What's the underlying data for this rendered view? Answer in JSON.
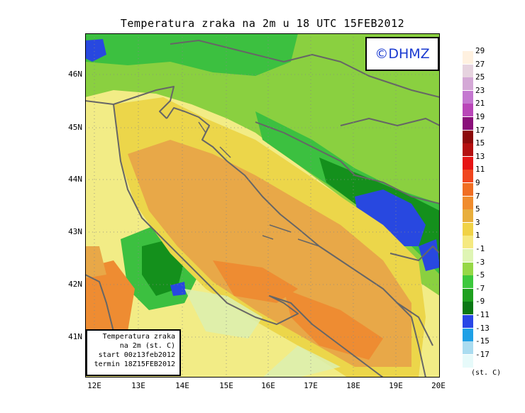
{
  "title": "Temperatura zraka na 2m u 18 UTC 15FEB2012",
  "brand": "©DHMZ",
  "info_box": {
    "line1": "Temperatura zraka",
    "line2": "na 2m (st. C)",
    "line3": "start 00z13feb2012",
    "line4": "termin 18Z15FEB2012"
  },
  "lat_ticks": [
    "46N",
    "45N",
    "44N",
    "43N",
    "42N",
    "41N"
  ],
  "lon_ticks": [
    "12E",
    "13E",
    "14E",
    "15E",
    "16E",
    "17E",
    "18E",
    "19E",
    "20E"
  ],
  "legend": {
    "unit": "(st. C)",
    "labels": [
      "29",
      "27",
      "25",
      "23",
      "21",
      "19",
      "17",
      "15",
      "13",
      "11",
      "9",
      "7",
      "5",
      "3",
      "1",
      "-1",
      "-3",
      "-5",
      "-7",
      "-9",
      "-11",
      "-13",
      "-15",
      "-17"
    ],
    "colors": [
      "#fff1e0",
      "#e6d3df",
      "#d4a8d6",
      "#c477d0",
      "#b946b8",
      "#8a0f7a",
      "#8c0a0a",
      "#b40f0f",
      "#e61414",
      "#f0461e",
      "#f06e23",
      "#f08c2d",
      "#e8ae3c",
      "#f0d246",
      "#f5e980",
      "#dff5b4",
      "#96d846",
      "#3cc83c",
      "#1ea01e",
      "#0a7814",
      "#2846e6",
      "#1ea0e6",
      "#aadcf0",
      "#e6fafa"
    ]
  },
  "colors": {
    "sea_warm": "#e8a848",
    "sea_hot": "#ee8c32",
    "coast_yellow": "#ecd64a",
    "light_yellow": "#f2ec86",
    "pale_green": "#dcf0b0",
    "green": "#8ad040",
    "mid_green": "#3cc040",
    "dark_green": "#14901c",
    "blue": "#2848e0",
    "border_line": "#666666"
  }
}
